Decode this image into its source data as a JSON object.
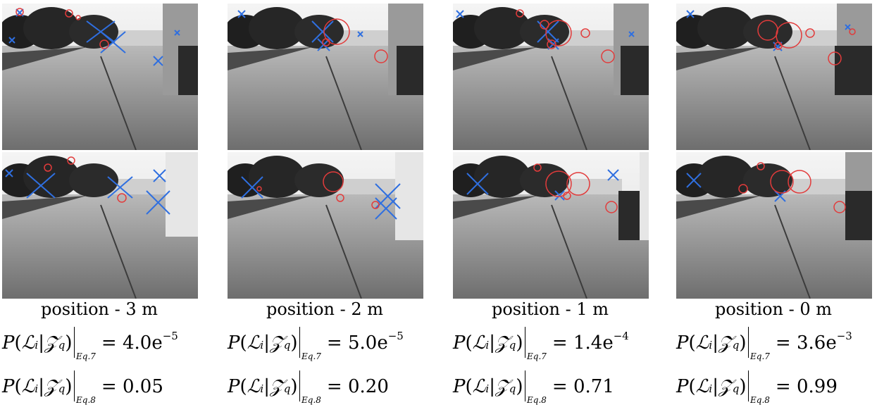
{
  "palette": {
    "marker_blue": "#2f6fe0",
    "marker_red": "#e23b3b",
    "sky": "#ececec",
    "road": "#8b8b8b"
  },
  "math": {
    "P": "P",
    "L": "ℒ",
    "i": "i",
    "Z": "𝒵",
    "q": "q",
    "open": "(",
    "mid": "|",
    "close": ")",
    "eq7": "Eq.7",
    "eq8": "Eq.8",
    "equals": "="
  },
  "panels": [
    {
      "caption": "position - 3 m",
      "eq7": {
        "mantissa": "4.0e",
        "exponent": "−5"
      },
      "eq8": "0.05"
    },
    {
      "caption": "position - 2 m",
      "eq7": {
        "mantissa": "5.0e",
        "exponent": "−5"
      },
      "eq8": "0.20"
    },
    {
      "caption": "position - 1 m",
      "eq7": {
        "mantissa": "1.4e",
        "exponent": "−4"
      },
      "eq8": "0.71"
    },
    {
      "caption": "position - 0 m",
      "eq7": {
        "mantissa": "3.6e",
        "exponent": "−3"
      },
      "eq8": "0.99"
    }
  ]
}
